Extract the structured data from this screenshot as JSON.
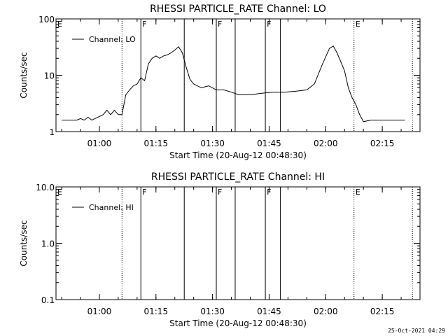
{
  "chart_data": [
    {
      "type": "line",
      "title": "RHESSI PARTICLE_RATE Channel: LO",
      "xlabel": "Start Time (20-Aug-12 00:48:30)",
      "ylabel": "Counts/sec",
      "y_scale": "log",
      "ylim": [
        1,
        100
      ],
      "xlim": [
        "00:48:30",
        "02:25:00"
      ],
      "x_ticks": [
        "01:00",
        "01:15",
        "01:30",
        "01:45",
        "02:00",
        "02:15"
      ],
      "y_ticks": [
        "1",
        "10",
        "100"
      ],
      "legend": {
        "label": "Channel: LO",
        "placement": "top-left"
      },
      "markers": [
        {
          "label": "E",
          "time": "00:48:30",
          "style": "dotted"
        },
        {
          "label": "",
          "time": "01:06:00",
          "style": "dotted"
        },
        {
          "label": "F",
          "time": "01:11:00",
          "style": "solid"
        },
        {
          "label": "",
          "time": "01:22:30",
          "style": "solid"
        },
        {
          "label": "F",
          "time": "01:31:00",
          "style": "solid"
        },
        {
          "label": "",
          "time": "01:36:00",
          "style": "solid"
        },
        {
          "label": "F",
          "time": "01:44:00",
          "style": "solid"
        },
        {
          "label": "",
          "time": "01:48:00",
          "style": "solid"
        },
        {
          "label": "E",
          "time": "02:07:30",
          "style": "dotted"
        },
        {
          "label": "",
          "time": "02:23:00",
          "style": "dotted"
        }
      ],
      "series": [
        {
          "name": "Channel: LO",
          "points": [
            [
              "00:50:00",
              1.6
            ],
            [
              "00:53:00",
              1.6
            ],
            [
              "00:54:00",
              1.6
            ],
            [
              "00:55:00",
              1.7
            ],
            [
              "00:56:00",
              1.6
            ],
            [
              "00:57:00",
              1.8
            ],
            [
              "00:58:00",
              1.6
            ],
            [
              "01:01:00",
              2.0
            ],
            [
              "01:02:00",
              2.4
            ],
            [
              "01:03:00",
              2.0
            ],
            [
              "01:04:00",
              2.4
            ],
            [
              "01:05:00",
              2.0
            ],
            [
              "01:06:00",
              2.0
            ],
            [
              "01:06:30",
              3.0
            ],
            [
              "01:07:00",
              4.5
            ],
            [
              "01:08:00",
              5.5
            ],
            [
              "01:09:00",
              6.5
            ],
            [
              "01:10:00",
              7.0
            ],
            [
              "01:11:00",
              9.0
            ],
            [
              "01:12:00",
              8.0
            ],
            [
              "01:13:00",
              16.0
            ],
            [
              "01:14:00",
              20.0
            ],
            [
              "01:15:00",
              22.0
            ],
            [
              "01:16:00",
              20.0
            ],
            [
              "01:17:00",
              22.0
            ],
            [
              "01:18:00",
              23.0
            ],
            [
              "01:19:00",
              25.0
            ],
            [
              "01:20:00",
              28.0
            ],
            [
              "01:21:00",
              32.0
            ],
            [
              "01:22:00",
              25.0
            ],
            [
              "01:23:00",
              14.0
            ],
            [
              "01:24:00",
              8.5
            ],
            [
              "01:25:00",
              7.0
            ],
            [
              "01:27:00",
              6.0
            ],
            [
              "01:29:00",
              6.5
            ],
            [
              "01:31:00",
              5.5
            ],
            [
              "01:33:00",
              5.5
            ],
            [
              "01:35:00",
              5.0
            ],
            [
              "01:37:00",
              4.5
            ],
            [
              "01:40:00",
              4.5
            ],
            [
              "01:43:00",
              4.8
            ],
            [
              "01:46:00",
              5.0
            ],
            [
              "01:49:00",
              5.0
            ],
            [
              "01:52:00",
              5.2
            ],
            [
              "01:55:00",
              5.5
            ],
            [
              "01:57:00",
              7.0
            ],
            [
              "01:59:00",
              15.0
            ],
            [
              "02:01:00",
              30.0
            ],
            [
              "02:02:00",
              33.0
            ],
            [
              "02:03:00",
              25.0
            ],
            [
              "02:05:00",
              12.0
            ],
            [
              "02:06:00",
              6.0
            ],
            [
              "02:07:00",
              4.0
            ],
            [
              "02:08:00",
              3.0
            ],
            [
              "02:09:00",
              2.0
            ],
            [
              "02:10:00",
              1.5
            ],
            [
              "02:12:00",
              1.6
            ],
            [
              "02:14:00",
              1.6
            ],
            [
              "02:18:00",
              1.6
            ],
            [
              "02:20:00",
              1.6
            ],
            [
              "02:21:00",
              1.6
            ]
          ]
        }
      ]
    },
    {
      "type": "line",
      "title": "RHESSI PARTICLE_RATE Channel: HI",
      "xlabel": "Start Time (20-Aug-12 00:48:30)",
      "ylabel": "Counts/sec",
      "y_scale": "log",
      "ylim": [
        0.1,
        10
      ],
      "xlim": [
        "00:48:30",
        "02:25:00"
      ],
      "x_ticks": [
        "01:00",
        "01:15",
        "01:30",
        "01:45",
        "02:00",
        "02:15"
      ],
      "y_ticks": [
        "0.1",
        "1.0",
        "10.0"
      ],
      "legend": {
        "label": "Channel: HI",
        "placement": "top-left"
      },
      "markers": [
        {
          "label": "E",
          "time": "00:48:30",
          "style": "dotted"
        },
        {
          "label": "",
          "time": "01:06:00",
          "style": "dotted"
        },
        {
          "label": "F",
          "time": "01:11:00",
          "style": "solid"
        },
        {
          "label": "",
          "time": "01:22:30",
          "style": "solid"
        },
        {
          "label": "F",
          "time": "01:31:00",
          "style": "solid"
        },
        {
          "label": "",
          "time": "01:36:00",
          "style": "solid"
        },
        {
          "label": "F",
          "time": "01:44:00",
          "style": "solid"
        },
        {
          "label": "",
          "time": "01:48:00",
          "style": "solid"
        },
        {
          "label": "E",
          "time": "02:07:30",
          "style": "dotted"
        },
        {
          "label": "",
          "time": "02:23:00",
          "style": "dotted"
        }
      ],
      "series": [
        {
          "name": "Channel: HI",
          "points": []
        }
      ]
    }
  ],
  "footer": {
    "timestamp": "25-Oct-2021 04:29"
  }
}
